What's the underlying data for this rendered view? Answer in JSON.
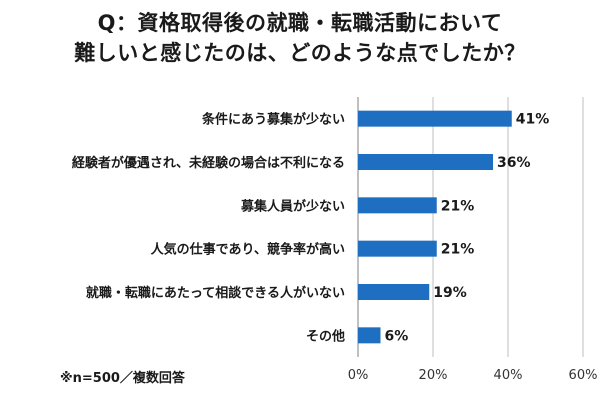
{
  "title_lines": [
    "Q：資格取得後の就職・転職活動において",
    "難しいと感じたのは、どのような点でしたか？"
  ],
  "note": "※n=500／複数回答",
  "colors": {
    "bar": "#1e6fc2",
    "grid": "#bfbfbf",
    "axis": "#808080"
  },
  "chart_data": {
    "type": "bar",
    "orientation": "horizontal",
    "categories": [
      "条件にあう募集が少ない",
      "経験者が優遇され、未経験の場合は不利になる",
      "募集人員が少ない",
      "人気の仕事であり、競争率が高い",
      "就職・転職にあたって相談できる人がいない",
      "その他"
    ],
    "values": [
      41,
      36,
      21,
      21,
      19,
      6
    ],
    "value_labels": [
      "41%",
      "36%",
      "21%",
      "21%",
      "19%",
      "6%"
    ],
    "xlim": [
      0,
      60
    ],
    "x_ticks": [
      0,
      20,
      40,
      60
    ],
    "x_tick_labels": [
      "0%",
      "20%",
      "40%",
      "60%"
    ],
    "grid": "vertical",
    "legend": "none"
  }
}
